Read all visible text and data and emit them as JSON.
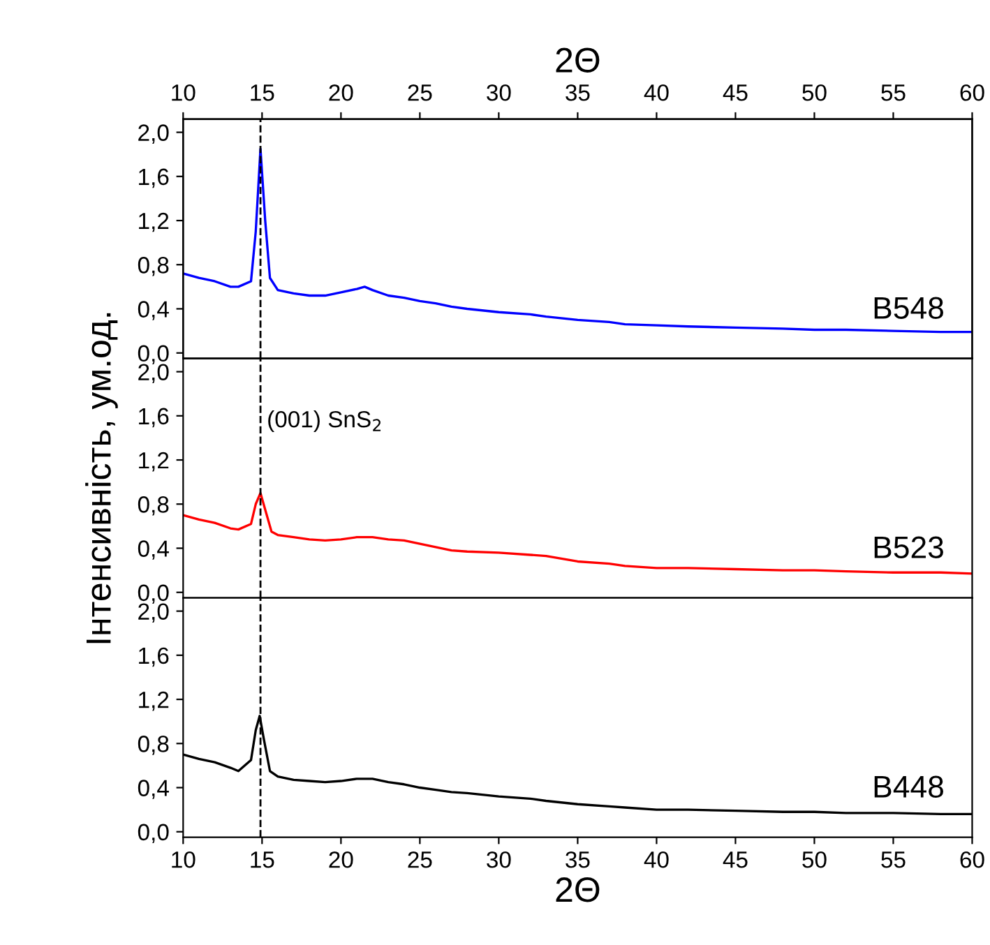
{
  "chart_data": [
    {
      "type": "line",
      "x2label": "2Θ",
      "xlim": [
        10,
        60
      ],
      "ylim": [
        -0.05,
        2.12
      ],
      "x2lim": [
        10,
        60
      ],
      "x2ticks": [
        10,
        15,
        20,
        25,
        30,
        35,
        40,
        45,
        50,
        55,
        60
      ],
      "yticks": [
        {
          "value": 0,
          "label": "0,0"
        },
        {
          "value": 0.4,
          "label": "0,4"
        },
        {
          "value": 0.8,
          "label": "0,8"
        },
        {
          "value": 1.2,
          "label": "1,2"
        },
        {
          "value": 1.6,
          "label": "1,6"
        },
        {
          "value": 2.0,
          "label": "2,0"
        }
      ],
      "tick_labels": "y",
      "legend": false,
      "grid": false,
      "ref_lines": [
        {
          "axis": "x",
          "value": 14.9,
          "color": "#000000",
          "line_style": "dashed"
        }
      ],
      "series": [
        {
          "name": "B548",
          "color": "#0000ff",
          "x": [
            10,
            11,
            12,
            13,
            13.5,
            14.3,
            14.6,
            14.9,
            15.2,
            15.5,
            16,
            17,
            18,
            19,
            20,
            21,
            21.5,
            22,
            23,
            24,
            25,
            26,
            27,
            28,
            30,
            32,
            33,
            35,
            37,
            38,
            40,
            42,
            45,
            48,
            50,
            52,
            55,
            58,
            60
          ],
          "values": [
            0.72,
            0.68,
            0.65,
            0.6,
            0.6,
            0.65,
            1.1,
            1.85,
            1.2,
            0.68,
            0.57,
            0.54,
            0.52,
            0.52,
            0.55,
            0.58,
            0.6,
            0.57,
            0.52,
            0.5,
            0.47,
            0.45,
            0.42,
            0.4,
            0.37,
            0.35,
            0.33,
            0.3,
            0.28,
            0.26,
            0.25,
            0.24,
            0.23,
            0.22,
            0.21,
            0.21,
            0.2,
            0.19,
            0.19
          ]
        }
      ]
    },
    {
      "type": "line",
      "ylabel": "Інтенсивність, ум.од.",
      "xlim": [
        10,
        60
      ],
      "ylim": [
        -0.05,
        2.12
      ],
      "yticks": [
        {
          "value": 0,
          "label": "0,0"
        },
        {
          "value": 0.4,
          "label": "0,4"
        },
        {
          "value": 0.8,
          "label": "0,8"
        },
        {
          "value": 1.2,
          "label": "1,2"
        },
        {
          "value": 1.6,
          "label": "1,6"
        },
        {
          "value": 2.0,
          "label": "2,0"
        }
      ],
      "tick_labels": "y",
      "legend": false,
      "grid": false,
      "annotations": [
        {
          "text": "(001) SnS$_{2}$",
          "x": 15.3,
          "y": 1.55
        }
      ],
      "ref_lines": [
        {
          "axis": "x",
          "value": 14.9,
          "color": "#000000",
          "line_style": "dashed"
        }
      ],
      "series": [
        {
          "name": "B523",
          "color": "#ff0000",
          "x": [
            10,
            11,
            12,
            13,
            13.5,
            14.3,
            14.6,
            14.9,
            15.2,
            15.6,
            16,
            17,
            18,
            19,
            20,
            21,
            22,
            23,
            24,
            25,
            26,
            27,
            28,
            30,
            32,
            33,
            35,
            37,
            38,
            40,
            42,
            45,
            48,
            50,
            52,
            55,
            58,
            60
          ],
          "values": [
            0.7,
            0.66,
            0.63,
            0.58,
            0.57,
            0.62,
            0.8,
            0.9,
            0.75,
            0.55,
            0.52,
            0.5,
            0.48,
            0.47,
            0.48,
            0.5,
            0.5,
            0.48,
            0.47,
            0.44,
            0.41,
            0.38,
            0.37,
            0.36,
            0.34,
            0.33,
            0.28,
            0.26,
            0.24,
            0.22,
            0.22,
            0.21,
            0.2,
            0.2,
            0.19,
            0.18,
            0.18,
            0.17
          ]
        }
      ]
    },
    {
      "type": "line",
      "xlabel": "2Θ",
      "xlim": [
        10,
        60
      ],
      "ylim": [
        -0.05,
        2.12
      ],
      "xticks": [
        10,
        15,
        20,
        25,
        30,
        35,
        40,
        45,
        50,
        55,
        60
      ],
      "yticks": [
        {
          "value": 0,
          "label": "0,0"
        },
        {
          "value": 0.4,
          "label": "0,4"
        },
        {
          "value": 0.8,
          "label": "0,8"
        },
        {
          "value": 1.2,
          "label": "1,2"
        },
        {
          "value": 1.6,
          "label": "1,6"
        },
        {
          "value": 2.0,
          "label": "2,0"
        }
      ],
      "legend": false,
      "grid": false,
      "ref_lines": [
        {
          "axis": "x",
          "value": 14.9,
          "color": "#000000",
          "line_style": "dashed"
        }
      ],
      "series": [
        {
          "name": "B448",
          "color": "#000000",
          "x": [
            10,
            11,
            12,
            13,
            13.5,
            14.3,
            14.6,
            14.85,
            15.1,
            15.5,
            16,
            17,
            18,
            19,
            20,
            21,
            22,
            23,
            24,
            25,
            26,
            27,
            28,
            30,
            32,
            33,
            35,
            37,
            38,
            40,
            42,
            45,
            48,
            50,
            52,
            55,
            58,
            60
          ],
          "values": [
            0.7,
            0.66,
            0.63,
            0.58,
            0.55,
            0.65,
            0.92,
            1.05,
            0.85,
            0.55,
            0.5,
            0.47,
            0.46,
            0.45,
            0.46,
            0.48,
            0.48,
            0.45,
            0.43,
            0.4,
            0.38,
            0.36,
            0.35,
            0.32,
            0.3,
            0.28,
            0.25,
            0.23,
            0.22,
            0.2,
            0.2,
            0.19,
            0.18,
            0.18,
            0.17,
            0.17,
            0.16,
            0.16
          ]
        }
      ]
    }
  ]
}
